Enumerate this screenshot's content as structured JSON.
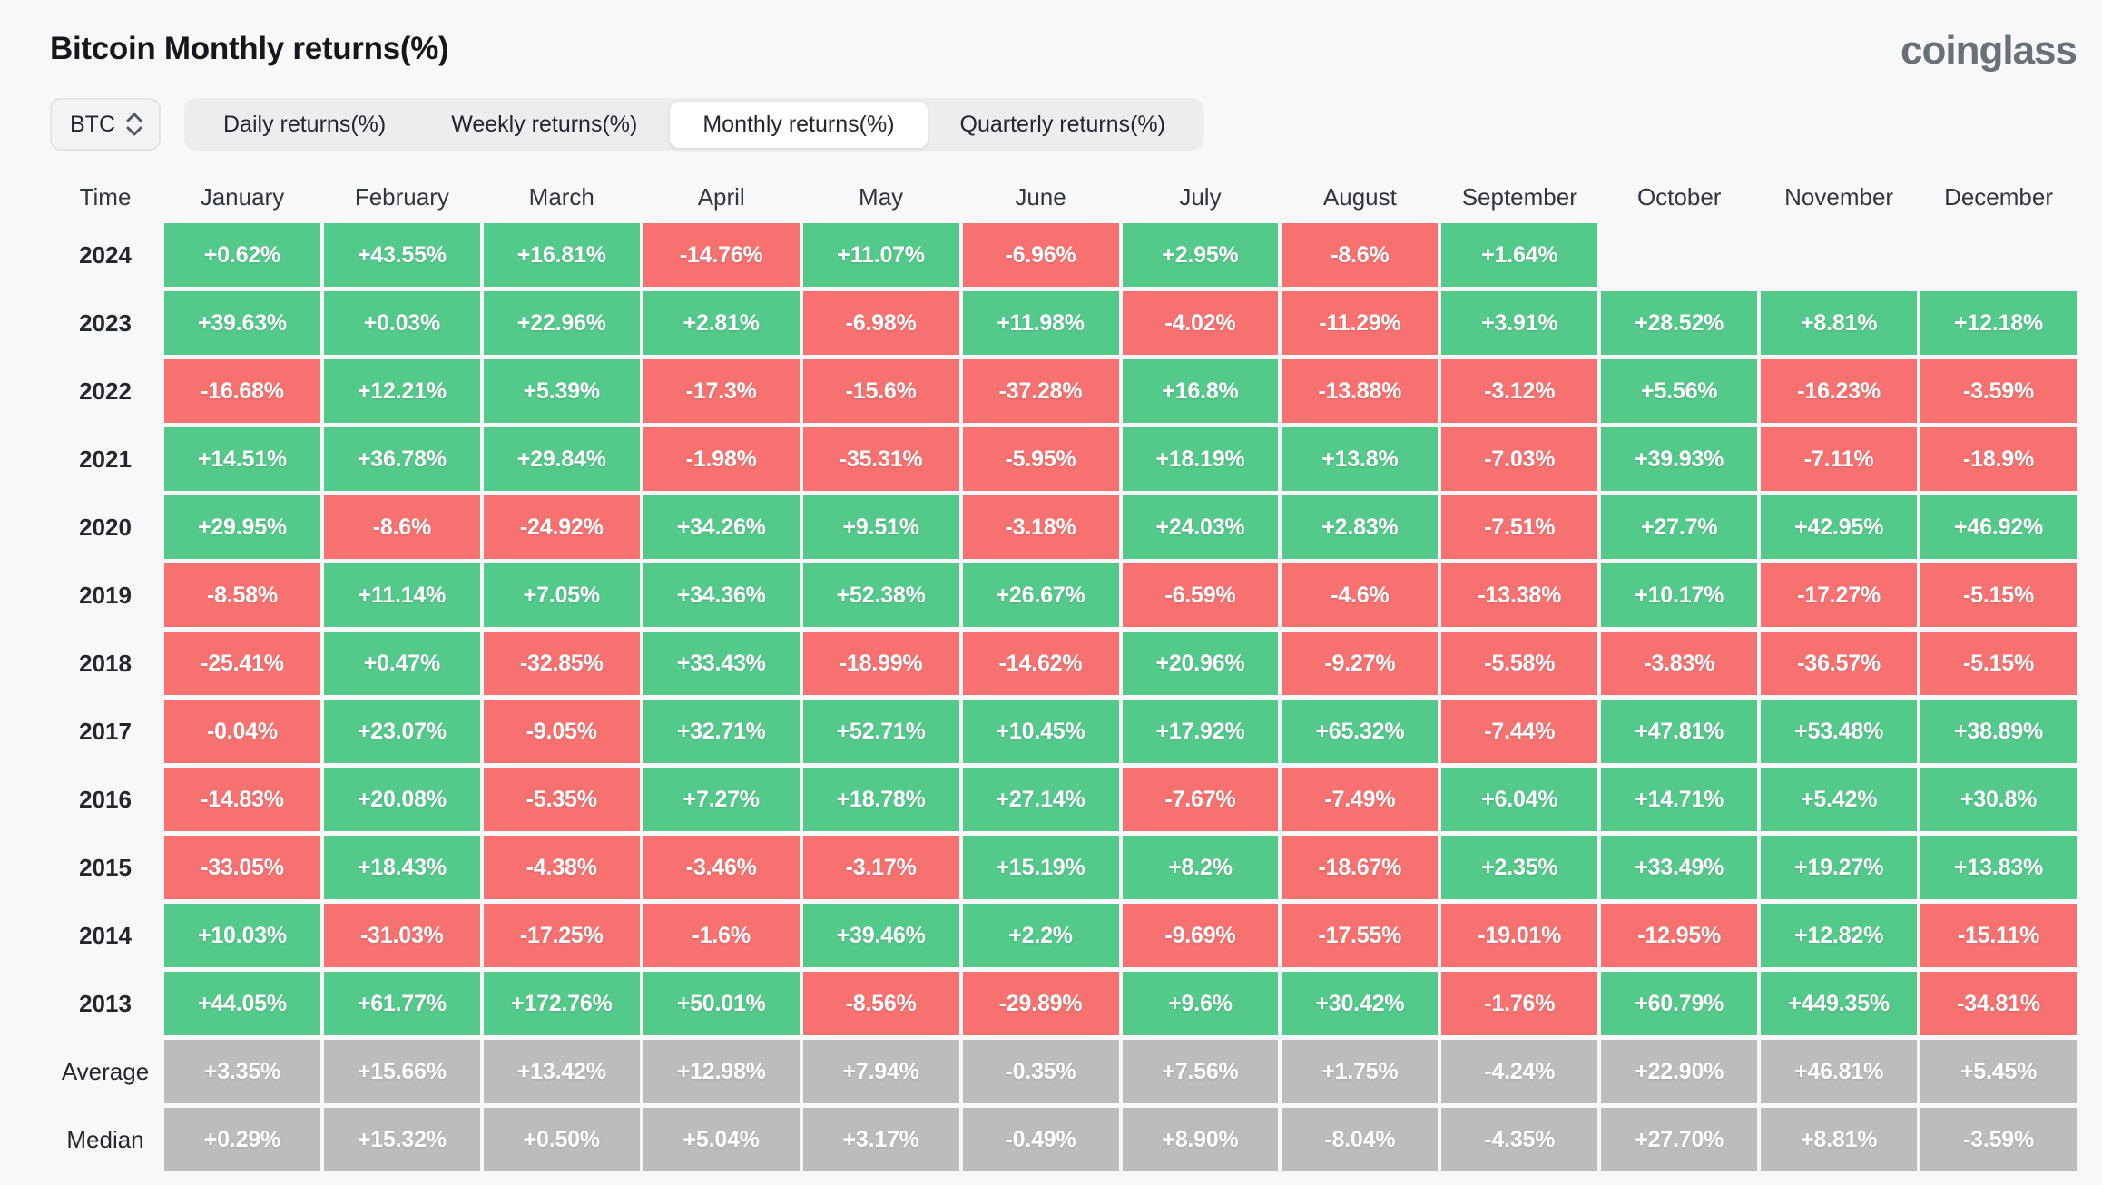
{
  "page": {
    "title": "Bitcoin Monthly returns(%)",
    "brand": "coinglass"
  },
  "controls": {
    "coin_selector": {
      "value": "BTC",
      "icon": "up-down-chevron-icon"
    },
    "tabs": [
      {
        "label": "Daily returns(%)",
        "active": false
      },
      {
        "label": "Weekly returns(%)",
        "active": false
      },
      {
        "label": "Monthly returns(%)",
        "active": true
      },
      {
        "label": "Quarterly returns(%)",
        "active": false
      }
    ]
  },
  "colors": {
    "positive": "#53c98a",
    "negative": "#f77170",
    "summary": "#bcbcbc"
  },
  "chart_data": {
    "type": "heatmap",
    "title": "Bitcoin Monthly returns(%)",
    "unit": "%",
    "row_header": "Time",
    "columns": [
      "January",
      "February",
      "March",
      "April",
      "May",
      "June",
      "July",
      "August",
      "September",
      "October",
      "November",
      "December"
    ],
    "rows": [
      {
        "label": "2024",
        "summary": false,
        "values": [
          "+0.62%",
          "+43.55%",
          "+16.81%",
          "-14.76%",
          "+11.07%",
          "-6.96%",
          "+2.95%",
          "-8.6%",
          "+1.64%",
          "",
          "",
          ""
        ]
      },
      {
        "label": "2023",
        "summary": false,
        "values": [
          "+39.63%",
          "+0.03%",
          "+22.96%",
          "+2.81%",
          "-6.98%",
          "+11.98%",
          "-4.02%",
          "-11.29%",
          "+3.91%",
          "+28.52%",
          "+8.81%",
          "+12.18%"
        ]
      },
      {
        "label": "2022",
        "summary": false,
        "values": [
          "-16.68%",
          "+12.21%",
          "+5.39%",
          "-17.3%",
          "-15.6%",
          "-37.28%",
          "+16.8%",
          "-13.88%",
          "-3.12%",
          "+5.56%",
          "-16.23%",
          "-3.59%"
        ]
      },
      {
        "label": "2021",
        "summary": false,
        "values": [
          "+14.51%",
          "+36.78%",
          "+29.84%",
          "-1.98%",
          "-35.31%",
          "-5.95%",
          "+18.19%",
          "+13.8%",
          "-7.03%",
          "+39.93%",
          "-7.11%",
          "-18.9%"
        ]
      },
      {
        "label": "2020",
        "summary": false,
        "values": [
          "+29.95%",
          "-8.6%",
          "-24.92%",
          "+34.26%",
          "+9.51%",
          "-3.18%",
          "+24.03%",
          "+2.83%",
          "-7.51%",
          "+27.7%",
          "+42.95%",
          "+46.92%"
        ]
      },
      {
        "label": "2019",
        "summary": false,
        "values": [
          "-8.58%",
          "+11.14%",
          "+7.05%",
          "+34.36%",
          "+52.38%",
          "+26.67%",
          "-6.59%",
          "-4.6%",
          "-13.38%",
          "+10.17%",
          "-17.27%",
          "-5.15%"
        ]
      },
      {
        "label": "2018",
        "summary": false,
        "values": [
          "-25.41%",
          "+0.47%",
          "-32.85%",
          "+33.43%",
          "-18.99%",
          "-14.62%",
          "+20.96%",
          "-9.27%",
          "-5.58%",
          "-3.83%",
          "-36.57%",
          "-5.15%"
        ]
      },
      {
        "label": "2017",
        "summary": false,
        "values": [
          "-0.04%",
          "+23.07%",
          "-9.05%",
          "+32.71%",
          "+52.71%",
          "+10.45%",
          "+17.92%",
          "+65.32%",
          "-7.44%",
          "+47.81%",
          "+53.48%",
          "+38.89%"
        ]
      },
      {
        "label": "2016",
        "summary": false,
        "values": [
          "-14.83%",
          "+20.08%",
          "-5.35%",
          "+7.27%",
          "+18.78%",
          "+27.14%",
          "-7.67%",
          "-7.49%",
          "+6.04%",
          "+14.71%",
          "+5.42%",
          "+30.8%"
        ]
      },
      {
        "label": "2015",
        "summary": false,
        "values": [
          "-33.05%",
          "+18.43%",
          "-4.38%",
          "-3.46%",
          "-3.17%",
          "+15.19%",
          "+8.2%",
          "-18.67%",
          "+2.35%",
          "+33.49%",
          "+19.27%",
          "+13.83%"
        ]
      },
      {
        "label": "2014",
        "summary": false,
        "values": [
          "+10.03%",
          "-31.03%",
          "-17.25%",
          "-1.6%",
          "+39.46%",
          "+2.2%",
          "-9.69%",
          "-17.55%",
          "-19.01%",
          "-12.95%",
          "+12.82%",
          "-15.11%"
        ]
      },
      {
        "label": "2013",
        "summary": false,
        "values": [
          "+44.05%",
          "+61.77%",
          "+172.76%",
          "+50.01%",
          "-8.56%",
          "-29.89%",
          "+9.6%",
          "+30.42%",
          "-1.76%",
          "+60.79%",
          "+449.35%",
          "-34.81%"
        ]
      },
      {
        "label": "Average",
        "summary": true,
        "values": [
          "+3.35%",
          "+15.66%",
          "+13.42%",
          "+12.98%",
          "+7.94%",
          "-0.35%",
          "+7.56%",
          "+1.75%",
          "-4.24%",
          "+22.90%",
          "+46.81%",
          "+5.45%"
        ]
      },
      {
        "label": "Median",
        "summary": true,
        "values": [
          "+0.29%",
          "+15.32%",
          "+0.50%",
          "+5.04%",
          "+3.17%",
          "-0.49%",
          "+8.90%",
          "-8.04%",
          "-4.35%",
          "+27.70%",
          "+8.81%",
          "-3.59%"
        ]
      }
    ]
  }
}
